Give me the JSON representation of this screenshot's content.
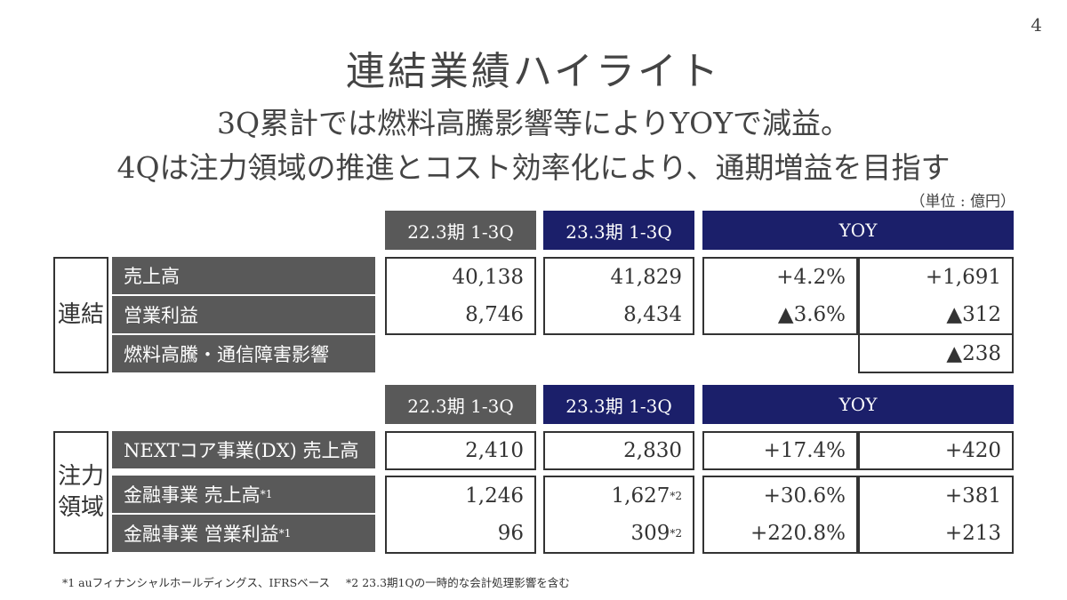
{
  "page_number": "4",
  "title": "連結業績ハイライト",
  "subtitle_line1": "3Q累計では燃料高騰影響等によりYOYで減益。",
  "subtitle_line2": "4Qは注力領域の推進とコスト効率化により、通期増益を目指す",
  "unit_note": "（単位 : 億円）",
  "headers": {
    "prev": "22.3期 1-3Q",
    "curr": "23.3期 1-3Q",
    "yoy": "YOY"
  },
  "consolidated": {
    "group_label": "連結",
    "rows": [
      {
        "label": "売上高",
        "prev": "40,138",
        "curr": "41,829",
        "yoy_pct": "+4.2%",
        "yoy_abs": "+1,691"
      },
      {
        "label": "営業利益",
        "prev": "8,746",
        "curr": "8,434",
        "yoy_pct": "▲3.6%",
        "yoy_abs": "▲312"
      },
      {
        "label": "燃料高騰・通信障害影響",
        "yoy_abs": "▲238"
      }
    ]
  },
  "focus": {
    "group_label_line1": "注力",
    "group_label_line2": "領域",
    "rows": [
      {
        "label": "NEXTコア事業(DX) 売上高",
        "prev": "2,410",
        "curr": "2,830",
        "yoy_pct": "+17.4%",
        "yoy_abs": "+420"
      },
      {
        "label": "金融事業 売上高",
        "label_note": "*1",
        "prev": "1,246",
        "curr": "1,627",
        "curr_note": "*2",
        "yoy_pct": "+30.6%",
        "yoy_abs": "+381"
      },
      {
        "label": "金融事業 営業利益",
        "label_note": "*1",
        "prev": "96",
        "curr": "309",
        "curr_note": "*2",
        "yoy_pct": "+220.8%",
        "yoy_abs": "+213"
      }
    ]
  },
  "footnotes": [
    "*1 auフィナンシャルホールディングス、IFRSベース",
    "*2 23.3期1Qの一時的な会計処理影響を含む"
  ]
}
